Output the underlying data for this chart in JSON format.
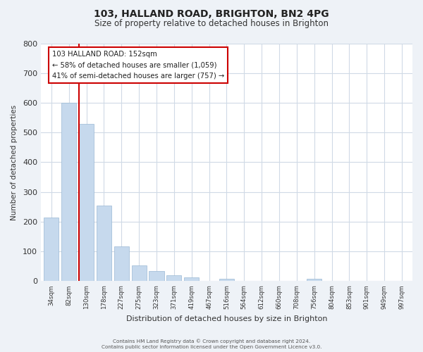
{
  "title1": "103, HALLAND ROAD, BRIGHTON, BN2 4PG",
  "title2": "Size of property relative to detached houses in Brighton",
  "xlabel": "Distribution of detached houses by size in Brighton",
  "ylabel": "Number of detached properties",
  "bin_labels": [
    "34sqm",
    "82sqm",
    "130sqm",
    "178sqm",
    "227sqm",
    "275sqm",
    "323sqm",
    "371sqm",
    "419sqm",
    "467sqm",
    "516sqm",
    "564sqm",
    "612sqm",
    "660sqm",
    "708sqm",
    "756sqm",
    "804sqm",
    "853sqm",
    "901sqm",
    "949sqm",
    "997sqm"
  ],
  "bar_heights": [
    215,
    600,
    530,
    255,
    118,
    52,
    35,
    20,
    13,
    0,
    8,
    0,
    0,
    0,
    0,
    7,
    0,
    0,
    0,
    0,
    0
  ],
  "bar_color": "#c6d9ed",
  "bar_edge_color": "#9ab8d4",
  "vline_color": "#cc0000",
  "vline_x_index": 2,
  "ylim": [
    0,
    800
  ],
  "yticks": [
    0,
    100,
    200,
    300,
    400,
    500,
    600,
    700,
    800
  ],
  "annotation_title": "103 HALLAND ROAD: 152sqm",
  "annotation_line1": "← 58% of detached houses are smaller (1,059)",
  "annotation_line2": "41% of semi-detached houses are larger (757) →",
  "footer1": "Contains HM Land Registry data © Crown copyright and database right 2024.",
  "footer2": "Contains public sector information licensed under the Open Government Licence v3.0.",
  "background_color": "#eef2f7",
  "plot_bg_color": "#ffffff",
  "grid_color": "#d0dae6"
}
